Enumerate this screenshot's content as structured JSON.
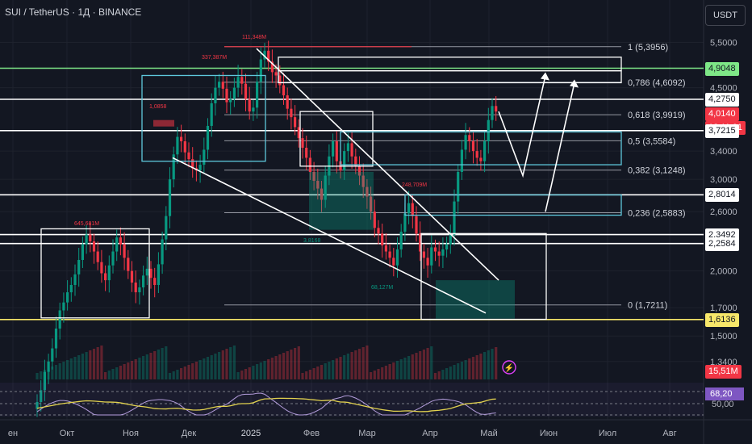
{
  "header": {
    "title": "SUI / TetherUS · 1Д · BINANCE",
    "currency": "USDT"
  },
  "colors": {
    "bg": "#131722",
    "grid": "#1e222d",
    "up": "#089981",
    "down": "#f23645",
    "text": "#b2b5be",
    "white": "#ffffff",
    "yellow": "#f7e76a",
    "green_line": "#7ee787",
    "rsi": "#b39ddb",
    "rsi_ma": "#e3d34f"
  },
  "chart_data": {
    "type": "candlestick",
    "price_axis": {
      "scale": "log",
      "labels": [
        "5,5000",
        "4,5000",
        "3,4000",
        "3,0000",
        "2,6000",
        "2,0000",
        "1,7000",
        "1,5000",
        "1,3400"
      ]
    },
    "time_axis": {
      "labels": [
        "ен",
        "Окт",
        "Ноя",
        "Дек",
        "2025",
        "Фев",
        "Мар",
        "Апр",
        "Май",
        "Июн",
        "Июл",
        "Авг"
      ]
    },
    "price_tags": [
      {
        "value": "4,9048",
        "kind": "green"
      },
      {
        "value": "4,2750",
        "kind": "white"
      },
      {
        "value": "4,0140",
        "sub": "18:11:01",
        "kind": "red"
      },
      {
        "value": "3,7215",
        "kind": "white"
      },
      {
        "value": "2,8014",
        "kind": "white"
      },
      {
        "value": "2,3492",
        "kind": "white"
      },
      {
        "value": "2,2584",
        "kind": "white"
      },
      {
        "value": "1,6136",
        "kind": "yellow"
      },
      {
        "value": "15,51M",
        "kind": "volume"
      }
    ],
    "fib_levels": [
      {
        "label": "1 (5,3956)",
        "price": 5.3956
      },
      {
        "label": "0,786 (4,6092)",
        "price": 4.6092
      },
      {
        "label": "0,618 (3,9919)",
        "price": 3.9919
      },
      {
        "label": "0,5 (3,5584)",
        "price": 3.5584
      },
      {
        "label": "0,382 (3,1248)",
        "price": 3.1248
      },
      {
        "label": "0,236 (2,5883)",
        "price": 2.5883
      },
      {
        "label": "0 (1,7211)",
        "price": 1.7211
      }
    ],
    "horizontal_lines": [
      {
        "price": 4.9048,
        "color": "green"
      },
      {
        "price": 4.275,
        "color": "white"
      },
      {
        "price": 3.7215,
        "color": "white"
      },
      {
        "price": 2.8014,
        "color": "white"
      },
      {
        "price": 2.3492,
        "color": "white"
      },
      {
        "price": 2.2584,
        "color": "white"
      },
      {
        "price": 1.6136,
        "color": "yellow"
      }
    ],
    "annotations": [
      "111,348M",
      "337,387M",
      "1,0858",
      "645,681M",
      "248,709M",
      "68,127M",
      "3,8168"
    ],
    "rsi": {
      "labels": [
        "68,20",
        "50,00"
      ],
      "value": 68.2
    },
    "series": [
      {
        "name": "SUI",
        "closes": [
          1.12,
          1.18,
          1.28,
          1.34,
          1.42,
          1.55,
          1.68,
          1.74,
          1.82,
          1.88,
          1.97,
          2.1,
          2.25,
          2.35,
          2.28,
          2.18,
          2.08,
          1.98,
          1.92,
          2.05,
          2.18,
          2.32,
          2.25,
          2.12,
          2.0,
          1.9,
          1.82,
          1.86,
          1.96,
          2.02,
          1.94,
          1.88,
          2.06,
          2.3,
          2.55,
          3.0,
          3.35,
          3.62,
          3.55,
          3.38,
          3.28,
          3.15,
          3.12,
          3.2,
          3.42,
          3.8,
          4.2,
          4.5,
          4.62,
          4.48,
          4.22,
          4.28,
          4.5,
          4.72,
          4.58,
          4.28,
          4.05,
          4.12,
          4.62,
          5.1,
          5.3,
          5.05,
          4.82,
          4.75,
          4.55,
          4.35,
          4.1,
          3.95,
          3.78,
          3.6,
          3.45,
          3.3,
          3.1,
          2.98,
          2.88,
          2.74,
          3.05,
          3.32,
          3.55,
          3.25,
          3.12,
          3.4,
          3.52,
          3.32,
          3.18,
          3.05,
          2.9,
          2.78,
          2.6,
          2.42,
          2.36,
          2.24,
          2.18,
          2.12,
          2.05,
          2.2,
          2.38,
          2.58,
          2.7,
          2.55,
          2.36,
          2.18,
          2.12,
          2.05,
          2.22,
          2.18,
          2.14,
          2.2,
          2.25,
          2.35,
          2.72,
          3.1,
          3.42,
          3.65,
          3.55,
          3.4,
          3.3,
          3.25,
          3.55,
          3.9,
          4.15,
          4.05
        ]
      }
    ]
  }
}
